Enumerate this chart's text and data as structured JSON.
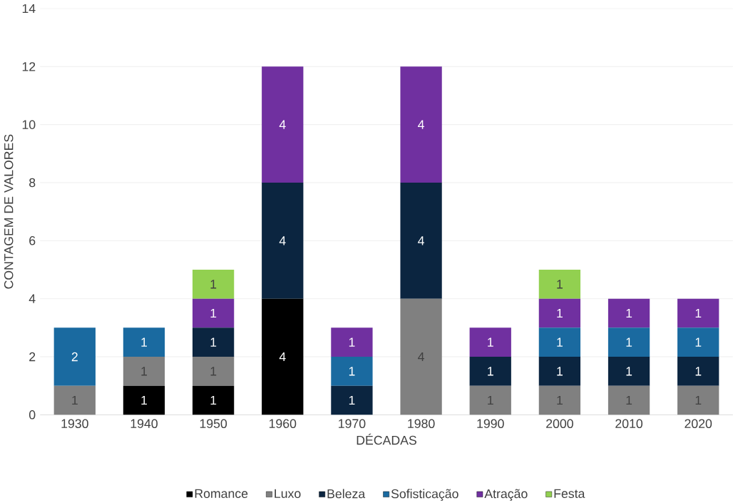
{
  "chart_data": {
    "type": "bar",
    "stacked": true,
    "xlabel": "DÉCADAS",
    "ylabel": "CONTAGEM DE VALORES",
    "categories": [
      "1930",
      "1940",
      "1950",
      "1960",
      "1970",
      "1980",
      "1990",
      "2000",
      "2010",
      "2020"
    ],
    "series": [
      {
        "name": "Romance",
        "color": "#000000",
        "values": [
          null,
          1,
          1,
          4,
          null,
          null,
          null,
          null,
          null,
          null
        ]
      },
      {
        "name": "Luxo",
        "color": "#808080",
        "values": [
          1,
          1,
          1,
          null,
          null,
          4,
          1,
          1,
          1,
          1
        ]
      },
      {
        "name": "Beleza",
        "color": "#0b2540",
        "values": [
          null,
          null,
          1,
          4,
          1,
          4,
          1,
          1,
          1,
          1
        ]
      },
      {
        "name": "Sofisticação",
        "color": "#1a6aa0",
        "values": [
          2,
          1,
          null,
          null,
          1,
          null,
          null,
          1,
          1,
          1
        ]
      },
      {
        "name": "Atração",
        "color": "#7030a0",
        "values": [
          null,
          null,
          1,
          4,
          1,
          4,
          1,
          1,
          1,
          1
        ]
      },
      {
        "name": "Festa",
        "color": "#92d050",
        "values": [
          null,
          null,
          1,
          null,
          null,
          null,
          null,
          1,
          null,
          null
        ]
      }
    ],
    "ylim": [
      0,
      14
    ],
    "yticks": [
      0,
      2,
      4,
      6,
      8,
      10,
      12,
      14
    ],
    "grid": "y",
    "legend": "bottom",
    "data_labels": true
  }
}
